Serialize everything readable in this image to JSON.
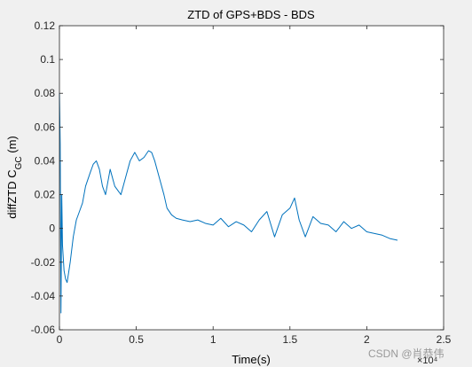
{
  "chart_data": {
    "type": "line",
    "title": "ZTD of GPS+BDS - BDS",
    "xlabel": "Time(s)",
    "ylabel": {
      "main": "diffZTD C",
      "sub_g": "G",
      "sub_c": "C",
      "unit": " (m)"
    },
    "x_exponent_label": "×10⁴",
    "xlim": [
      0,
      25000
    ],
    "ylim": [
      -0.06,
      0.12
    ],
    "xticks": [
      0,
      5000,
      10000,
      15000,
      20000,
      25000
    ],
    "xtick_labels": [
      "0",
      "0.5",
      "1",
      "1.5",
      "2",
      "2.5"
    ],
    "yticks": [
      -0.06,
      -0.04,
      -0.02,
      0,
      0.02,
      0.04,
      0.06,
      0.08,
      0.1,
      0.12
    ],
    "ytick_labels": [
      "-0.06",
      "-0.04",
      "-0.02",
      "0",
      "0.02",
      "0.04",
      "0.06",
      "0.08",
      "0.1",
      "0.12"
    ],
    "grid": false,
    "colors": {
      "line": "#0072BD",
      "axes_bg": "#ffffff",
      "figure_bg": "#f0f0f0"
    },
    "series": [
      {
        "x": [
          0,
          50,
          100,
          150,
          200,
          300,
          400,
          500,
          700,
          900,
          1100,
          1300,
          1500,
          1700,
          2000,
          2200,
          2400,
          2600,
          2800,
          3000,
          3300,
          3600,
          4000,
          4300,
          4600,
          4900,
          5200,
          5500,
          5800,
          6000,
          6200,
          6500,
          6800,
          7000,
          7300,
          7600,
          8000,
          8500,
          9000,
          9500,
          10000,
          10500,
          11000,
          11500,
          12000,
          12500,
          13000,
          13500,
          14000,
          14500,
          15000,
          15300,
          15600,
          16000,
          16500,
          17000,
          17500,
          18000,
          18500,
          19000,
          19500,
          20000,
          20500,
          21000,
          21500,
          22000
        ],
        "y": [
          0.08,
          0.05,
          -0.05,
          0.02,
          -0.01,
          -0.025,
          -0.03,
          -0.032,
          -0.02,
          -0.005,
          0.005,
          0.01,
          0.015,
          0.025,
          0.033,
          0.038,
          0.04,
          0.035,
          0.025,
          0.02,
          0.035,
          0.025,
          0.02,
          0.03,
          0.04,
          0.045,
          0.04,
          0.042,
          0.046,
          0.045,
          0.04,
          0.03,
          0.02,
          0.012,
          0.008,
          0.006,
          0.005,
          0.004,
          0.005,
          0.003,
          0.002,
          0.006,
          0.001,
          0.004,
          0.002,
          -0.002,
          0.005,
          0.01,
          -0.005,
          0.008,
          0.012,
          0.018,
          0.005,
          -0.005,
          0.007,
          0.003,
          0.002,
          -0.002,
          0.004,
          0.0,
          0.002,
          -0.002,
          -0.003,
          -0.004,
          -0.006,
          -0.007
        ]
      }
    ]
  },
  "watermark": "CSDN @肖恭伟"
}
